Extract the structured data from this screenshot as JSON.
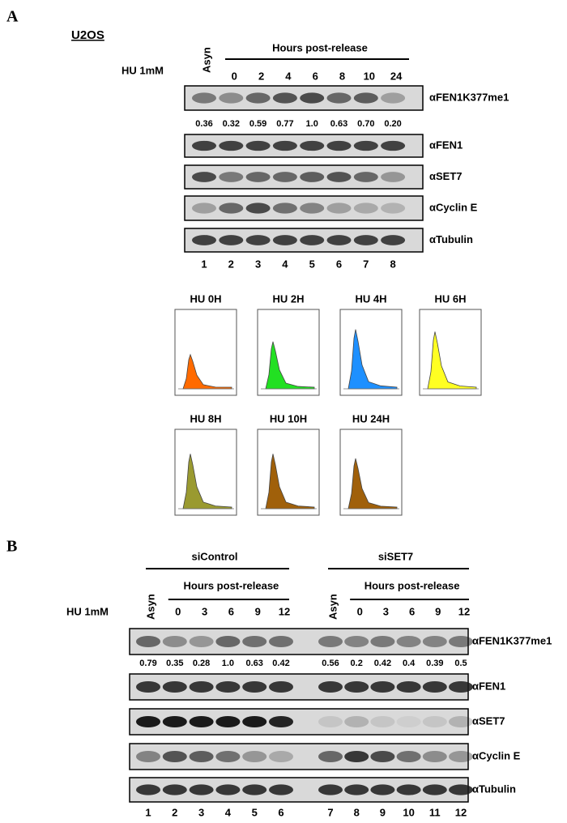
{
  "panel_a": {
    "label": "A",
    "cell_line": "U2OS",
    "treatment": "HU 1mM",
    "header": "Hours post-release",
    "lanes": [
      "Asyn",
      "0",
      "2",
      "4",
      "6",
      "8",
      "10",
      "24"
    ],
    "antibodies": [
      "αFEN1K377me1",
      "αFEN1",
      "αSET7",
      "αCyclin E",
      "αTubulin"
    ],
    "quantification": [
      "0.36",
      "0.32",
      "0.59",
      "0.77",
      "1.0",
      "0.63",
      "0.70",
      "0.20"
    ],
    "lane_numbers": [
      "1",
      "2",
      "3",
      "4",
      "5",
      "6",
      "7",
      "8"
    ],
    "histograms": [
      "HU 0H",
      "HU 2H",
      "HU 4H",
      "HU 6H",
      "HU 8H",
      "HU 10H",
      "HU 24H"
    ]
  },
  "panel_b": {
    "label": "B",
    "treatment": "HU 1mM",
    "groups": [
      {
        "name": "siControl",
        "header": "Hours post-release",
        "lanes": [
          "Asyn",
          "0",
          "3",
          "6",
          "9",
          "12"
        ]
      },
      {
        "name": "siSET7",
        "header": "Hours post-release",
        "lanes": [
          "Asyn",
          "0",
          "3",
          "6",
          "9",
          "12"
        ]
      }
    ],
    "antibodies": [
      "αFEN1K377me1",
      "αFEN1",
      "αSET7",
      "αCyclin E",
      "αTubulin"
    ],
    "quantification": [
      "0.79",
      "0.35",
      "0.28",
      "1.0",
      "0.63",
      "0.42",
      "0.56",
      "0.2",
      "0.42",
      "0.4",
      "0.39",
      "0.5"
    ],
    "lane_numbers": [
      "1",
      "2",
      "3",
      "4",
      "5",
      "6",
      "7",
      "8",
      "9",
      "10",
      "11",
      "12"
    ]
  }
}
